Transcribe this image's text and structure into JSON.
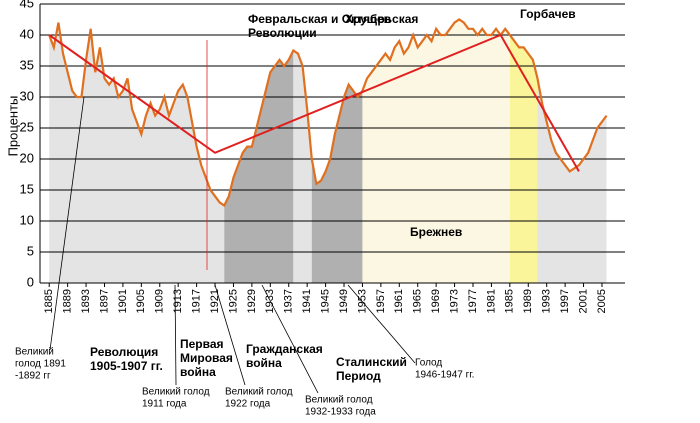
{
  "chart_data": {
    "type": "line",
    "ylabel": "Проценты",
    "xlim": [
      1883,
      2010
    ],
    "ylim": [
      0,
      45
    ],
    "xticks": [
      1885,
      1889,
      1893,
      1897,
      1901,
      1905,
      1909,
      1913,
      1917,
      1921,
      1925,
      1929,
      1933,
      1937,
      1941,
      1945,
      1949,
      1953,
      1957,
      1961,
      1965,
      1969,
      1973,
      1977,
      1981,
      1985,
      1989,
      1993,
      1997,
      2001,
      2005
    ],
    "yticks": [
      0,
      5,
      10,
      15,
      20,
      25,
      30,
      35,
      40,
      45
    ],
    "grid": true,
    "series": [
      {
        "color": "#e07020",
        "x": [
          1885,
          1886,
          1887,
          1888,
          1889,
          1890,
          1891,
          1892,
          1893,
          1894,
          1895,
          1896,
          1897,
          1898,
          1899,
          1900,
          1901,
          1902,
          1903,
          1904,
          1905,
          1906,
          1907,
          1908,
          1909,
          1910,
          1911,
          1912,
          1913,
          1914,
          1915,
          1916,
          1917,
          1918,
          1919,
          1920,
          1921,
          1922,
          1923,
          1924,
          1925,
          1926,
          1927,
          1928,
          1929,
          1930,
          1931,
          1932,
          1933,
          1934,
          1935,
          1936,
          1937,
          1938,
          1939,
          1940,
          1941,
          1942,
          1943,
          1944,
          1945,
          1946,
          1947,
          1948,
          1949,
          1950,
          1951,
          1952,
          1953,
          1954,
          1955,
          1956,
          1957,
          1958,
          1959,
          1960,
          1961,
          1962,
          1963,
          1964,
          1965,
          1966,
          1967,
          1968,
          1969,
          1970,
          1971,
          1972,
          1973,
          1974,
          1975,
          1976,
          1977,
          1978,
          1979,
          1980,
          1981,
          1982,
          1983,
          1984,
          1985,
          1986,
          1987,
          1988,
          1989,
          1990,
          1991,
          1992,
          1993,
          1994,
          1995,
          1996,
          1997,
          1998,
          1999,
          2000,
          2001,
          2002,
          2003,
          2004,
          2005,
          2006
        ],
        "values": [
          40,
          38,
          42,
          37,
          34,
          31,
          30,
          30,
          36,
          41,
          34,
          38,
          33,
          32,
          33,
          30,
          31,
          33,
          28,
          26,
          24,
          27,
          29,
          27,
          28,
          30,
          27,
          29,
          31,
          32,
          30,
          26,
          22,
          19,
          17,
          15,
          14,
          13,
          12.5,
          14,
          17,
          19,
          21,
          22,
          22,
          25,
          28,
          31,
          34,
          35,
          36,
          35,
          36,
          37.5,
          37,
          35,
          28,
          20,
          16,
          16.5,
          18,
          20,
          24,
          27,
          30,
          32,
          31,
          30,
          31,
          33,
          34,
          35,
          36,
          37,
          36,
          38,
          39,
          37,
          38,
          40,
          38,
          39,
          40,
          39,
          41,
          40,
          40,
          41,
          42,
          42.5,
          42,
          41,
          41,
          40,
          41,
          40,
          40,
          41,
          40,
          41,
          40,
          39,
          38,
          38,
          37,
          36,
          33,
          29,
          26,
          23,
          21,
          20,
          19,
          18,
          18.5,
          19,
          20,
          21,
          23,
          25,
          26,
          27
        ]
      },
      {
        "color": "#e02020",
        "x": [
          1885,
          1921,
          1983,
          2000
        ],
        "values": [
          40,
          21,
          40,
          18
        ]
      }
    ],
    "regions": [
      {
        "start": 1883,
        "end": 1923,
        "color": "#e4e4e4"
      },
      {
        "start": 1923,
        "end": 1938,
        "color": "#b0b0b0"
      },
      {
        "start": 1938,
        "end": 1942,
        "color": "#e4e4e4"
      },
      {
        "start": 1942,
        "end": 1953,
        "color": "#b0b0b0"
      },
      {
        "start": 1953,
        "end": 1985,
        "color": "#fcf7e2"
      },
      {
        "start": 1985,
        "end": 1991,
        "color": "#faf59a"
      },
      {
        "start": 1991,
        "end": 2006,
        "color": "#e4e4e4"
      }
    ],
    "annotations": [
      {
        "lines": [
          "Февральская и Октябрьская",
          "Революции"
        ]
      },
      {
        "lines": [
          "Хрущев"
        ]
      },
      {
        "lines": [
          "Горбачев"
        ]
      },
      {
        "lines": [
          "Брежнев"
        ]
      },
      {
        "lines": [
          "Великий",
          "голод 1891",
          "-1892 гг"
        ]
      },
      {
        "lines": [
          "Революция",
          "1905-1907 гг."
        ]
      },
      {
        "lines": [
          "Первая",
          "Мировая",
          "война"
        ]
      },
      {
        "lines": [
          "Гражданская",
          "война"
        ]
      },
      {
        "lines": [
          "Сталинский",
          "Период"
        ]
      },
      {
        "lines": [
          "Голод",
          "1946-1947 гг."
        ]
      },
      {
        "lines": [
          "Великий голод",
          "1911 года"
        ]
      },
      {
        "lines": [
          "Великий голод",
          "1922 года"
        ]
      },
      {
        "lines": [
          "Великий голод",
          "1932-1933 года"
        ]
      }
    ]
  }
}
